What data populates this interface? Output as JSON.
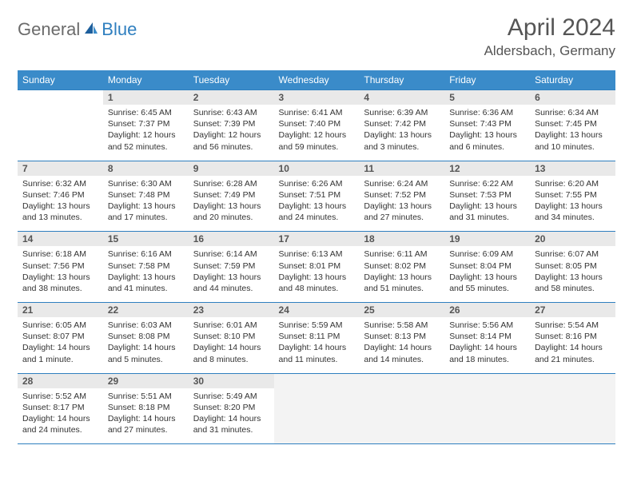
{
  "brand": {
    "part1": "General",
    "part2": "Blue"
  },
  "title": "April 2024",
  "location": "Aldersbach, Germany",
  "colors": {
    "header_bg": "#3a8bc9",
    "border": "#2f7fbf",
    "daynum_bg": "#e9e9e9",
    "trailing_bg": "#f3f3f3",
    "text": "#333333",
    "title_text": "#555555"
  },
  "weekdays": [
    "Sunday",
    "Monday",
    "Tuesday",
    "Wednesday",
    "Thursday",
    "Friday",
    "Saturday"
  ],
  "layout": {
    "first_weekday_index": 1,
    "days_in_month": 30
  },
  "days": {
    "1": {
      "sunrise": "6:45 AM",
      "sunset": "7:37 PM",
      "daylight": "12 hours and 52 minutes."
    },
    "2": {
      "sunrise": "6:43 AM",
      "sunset": "7:39 PM",
      "daylight": "12 hours and 56 minutes."
    },
    "3": {
      "sunrise": "6:41 AM",
      "sunset": "7:40 PM",
      "daylight": "12 hours and 59 minutes."
    },
    "4": {
      "sunrise": "6:39 AM",
      "sunset": "7:42 PM",
      "daylight": "13 hours and 3 minutes."
    },
    "5": {
      "sunrise": "6:36 AM",
      "sunset": "7:43 PM",
      "daylight": "13 hours and 6 minutes."
    },
    "6": {
      "sunrise": "6:34 AM",
      "sunset": "7:45 PM",
      "daylight": "13 hours and 10 minutes."
    },
    "7": {
      "sunrise": "6:32 AM",
      "sunset": "7:46 PM",
      "daylight": "13 hours and 13 minutes."
    },
    "8": {
      "sunrise": "6:30 AM",
      "sunset": "7:48 PM",
      "daylight": "13 hours and 17 minutes."
    },
    "9": {
      "sunrise": "6:28 AM",
      "sunset": "7:49 PM",
      "daylight": "13 hours and 20 minutes."
    },
    "10": {
      "sunrise": "6:26 AM",
      "sunset": "7:51 PM",
      "daylight": "13 hours and 24 minutes."
    },
    "11": {
      "sunrise": "6:24 AM",
      "sunset": "7:52 PM",
      "daylight": "13 hours and 27 minutes."
    },
    "12": {
      "sunrise": "6:22 AM",
      "sunset": "7:53 PM",
      "daylight": "13 hours and 31 minutes."
    },
    "13": {
      "sunrise": "6:20 AM",
      "sunset": "7:55 PM",
      "daylight": "13 hours and 34 minutes."
    },
    "14": {
      "sunrise": "6:18 AM",
      "sunset": "7:56 PM",
      "daylight": "13 hours and 38 minutes."
    },
    "15": {
      "sunrise": "6:16 AM",
      "sunset": "7:58 PM",
      "daylight": "13 hours and 41 minutes."
    },
    "16": {
      "sunrise": "6:14 AM",
      "sunset": "7:59 PM",
      "daylight": "13 hours and 44 minutes."
    },
    "17": {
      "sunrise": "6:13 AM",
      "sunset": "8:01 PM",
      "daylight": "13 hours and 48 minutes."
    },
    "18": {
      "sunrise": "6:11 AM",
      "sunset": "8:02 PM",
      "daylight": "13 hours and 51 minutes."
    },
    "19": {
      "sunrise": "6:09 AM",
      "sunset": "8:04 PM",
      "daylight": "13 hours and 55 minutes."
    },
    "20": {
      "sunrise": "6:07 AM",
      "sunset": "8:05 PM",
      "daylight": "13 hours and 58 minutes."
    },
    "21": {
      "sunrise": "6:05 AM",
      "sunset": "8:07 PM",
      "daylight": "14 hours and 1 minute."
    },
    "22": {
      "sunrise": "6:03 AM",
      "sunset": "8:08 PM",
      "daylight": "14 hours and 5 minutes."
    },
    "23": {
      "sunrise": "6:01 AM",
      "sunset": "8:10 PM",
      "daylight": "14 hours and 8 minutes."
    },
    "24": {
      "sunrise": "5:59 AM",
      "sunset": "8:11 PM",
      "daylight": "14 hours and 11 minutes."
    },
    "25": {
      "sunrise": "5:58 AM",
      "sunset": "8:13 PM",
      "daylight": "14 hours and 14 minutes."
    },
    "26": {
      "sunrise": "5:56 AM",
      "sunset": "8:14 PM",
      "daylight": "14 hours and 18 minutes."
    },
    "27": {
      "sunrise": "5:54 AM",
      "sunset": "8:16 PM",
      "daylight": "14 hours and 21 minutes."
    },
    "28": {
      "sunrise": "5:52 AM",
      "sunset": "8:17 PM",
      "daylight": "14 hours and 24 minutes."
    },
    "29": {
      "sunrise": "5:51 AM",
      "sunset": "8:18 PM",
      "daylight": "14 hours and 27 minutes."
    },
    "30": {
      "sunrise": "5:49 AM",
      "sunset": "8:20 PM",
      "daylight": "14 hours and 31 minutes."
    }
  },
  "labels": {
    "sunrise": "Sunrise:",
    "sunset": "Sunset:",
    "daylight": "Daylight:"
  }
}
